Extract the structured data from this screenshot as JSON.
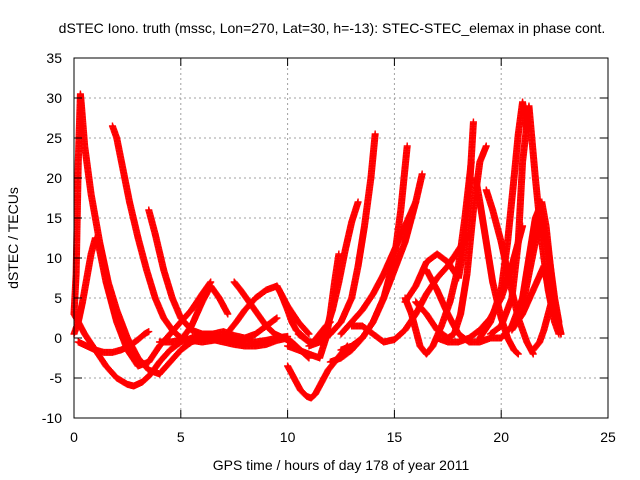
{
  "chart_data": {
    "type": "scatter",
    "title": "dSTEC Iono. truth (mssc, Lon=270, Lat=30, h=-13): STEC-STEC_elemax in phase cont.",
    "xlabel": "GPS time / hours of day 178 of year 2011",
    "ylabel": "dSTEC  / TECUs",
    "xlim": [
      0,
      25
    ],
    "ylim": [
      -10,
      35
    ],
    "xticks": [
      "0",
      "5",
      "10",
      "15",
      "20",
      "25"
    ],
    "yticks": [
      "-10",
      "-5",
      "0",
      "5",
      "10",
      "15",
      "20",
      "25",
      "30",
      "35"
    ],
    "grid": true,
    "legend": "none",
    "marker": "plus",
    "color": "#ff0000",
    "series": [
      {
        "x": [
          0.0,
          0.1,
          0.2,
          0.3,
          0.35,
          0.5,
          0.8,
          1.2,
          1.6,
          2.0,
          2.5,
          3.0,
          3.5,
          4.0,
          4.5,
          5.0,
          5.5,
          6.0,
          6.5,
          7.0
        ],
        "y": [
          3.0,
          8.0,
          22.0,
          30.5,
          29.0,
          24.0,
          18.0,
          12.0,
          7.0,
          3.5,
          0.0,
          -2.5,
          -4.0,
          -4.5,
          -3.0,
          -1.5,
          -0.5,
          0.0,
          0.2,
          0.0
        ]
      },
      {
        "x": [
          0.0,
          0.2,
          0.4,
          0.6,
          0.8,
          1.0,
          1.2,
          1.5,
          2.0,
          2.5,
          3.0,
          3.5,
          4.0,
          4.5,
          5.0,
          5.5,
          6.0,
          6.4
        ],
        "y": [
          0.5,
          2.0,
          4.5,
          7.5,
          10.5,
          12.5,
          11.0,
          7.0,
          2.0,
          -1.5,
          -3.5,
          -3.0,
          -1.0,
          0.5,
          2.0,
          3.5,
          5.5,
          7.0
        ]
      },
      {
        "x": [
          0.0,
          0.5,
          1.0,
          1.5,
          2.0,
          2.5,
          2.8,
          3.2,
          3.6,
          4.0,
          4.5,
          5.0,
          5.5,
          6.0,
          6.5,
          7.0,
          7.5,
          8.0
        ],
        "y": [
          3.0,
          0.5,
          -1.5,
          -3.5,
          -5.0,
          -5.8,
          -6.0,
          -5.5,
          -4.5,
          -3.0,
          -1.5,
          -0.5,
          0.0,
          0.5,
          0.5,
          0.0,
          -0.5,
          -0.8
        ]
      },
      {
        "x": [
          1.8,
          2.0,
          2.3,
          2.6,
          3.0,
          3.4,
          3.8,
          4.2,
          4.6,
          5.0,
          5.5,
          6.0,
          6.5,
          7.0,
          7.5,
          8.0,
          8.5,
          9.0,
          9.5,
          10.0
        ],
        "y": [
          26.5,
          25.0,
          21.0,
          17.0,
          12.5,
          8.5,
          5.0,
          2.5,
          1.0,
          0.0,
          -0.3,
          -0.5,
          -0.3,
          0.0,
          0.0,
          -0.3,
          -0.5,
          -0.3,
          0.0,
          0.2
        ]
      },
      {
        "x": [
          0.2,
          0.6,
          1.0,
          1.4,
          1.8,
          2.2,
          2.6,
          3.0,
          3.3,
          3.5
        ],
        "y": [
          -0.5,
          -1.0,
          -1.5,
          -1.8,
          -1.8,
          -1.5,
          -1.0,
          -0.2,
          0.5,
          0.8
        ]
      },
      {
        "x": [
          3.5,
          3.8,
          4.2,
          4.6,
          5.0,
          5.5,
          6.0,
          6.5,
          7.0,
          7.5,
          8.0,
          8.5,
          9.0,
          9.5
        ],
        "y": [
          16.0,
          13.0,
          8.5,
          5.0,
          2.5,
          1.0,
          0.5,
          0.5,
          0.8,
          0.3,
          0.0,
          0.5,
          1.5,
          2.5
        ]
      },
      {
        "x": [
          4.0,
          4.5,
          5.0,
          5.5,
          6.0,
          6.4,
          6.8,
          7.2
        ],
        "y": [
          -0.5,
          -0.5,
          -0.3,
          1.5,
          4.5,
          6.5,
          5.0,
          3.0
        ]
      },
      {
        "x": [
          7.0,
          7.3,
          7.6,
          8.0,
          8.5,
          9.0,
          9.5,
          10.0,
          10.5,
          11.0
        ],
        "y": [
          0.0,
          1.0,
          2.0,
          3.5,
          5.0,
          6.0,
          6.5,
          4.0,
          2.0,
          0.5
        ]
      },
      {
        "x": [
          7.5,
          7.8,
          8.2,
          8.6,
          9.0,
          9.4,
          9.8,
          10.2,
          10.6,
          11.0
        ],
        "y": [
          7.0,
          6.0,
          4.5,
          3.0,
          1.5,
          0.5,
          0.0,
          -0.5,
          -1.5,
          -2.5
        ]
      },
      {
        "x": [
          6.0,
          6.5,
          7.0,
          7.5,
          8.0,
          8.5,
          9.0,
          9.5,
          10.0
        ],
        "y": [
          0.0,
          -0.2,
          -0.5,
          -0.8,
          -1.0,
          -1.0,
          -0.8,
          -0.3,
          0.0
        ]
      },
      {
        "x": [
          9.5,
          9.7,
          10.0,
          10.2,
          10.4,
          10.6,
          10.8,
          11.0,
          11.2,
          11.5,
          11.8,
          12.0
        ],
        "y": [
          6.5,
          5.5,
          3.5,
          2.0,
          1.0,
          0.5,
          0.0,
          -0.5,
          -0.5,
          0.5,
          1.5,
          2.0
        ]
      },
      {
        "x": [
          10.0,
          10.3,
          10.6,
          10.9,
          11.1,
          11.3,
          11.6,
          11.9,
          12.2,
          12.5,
          12.8
        ],
        "y": [
          -3.5,
          -5.0,
          -6.5,
          -7.3,
          -7.5,
          -7.0,
          -5.5,
          -4.0,
          -3.0,
          -2.0,
          -1.0
        ]
      },
      {
        "x": [
          10.0,
          10.5,
          11.0,
          11.5,
          11.8,
          12.0,
          12.2,
          12.4
        ],
        "y": [
          -1.0,
          -1.5,
          -2.0,
          -2.5,
          0.0,
          3.0,
          7.0,
          10.5
        ]
      },
      {
        "x": [
          10.5,
          11.0,
          11.5,
          11.8,
          12.1,
          12.4,
          12.7,
          13.0,
          13.3
        ],
        "y": [
          0.5,
          -0.5,
          -0.5,
          1.0,
          3.5,
          7.0,
          11.0,
          14.5,
          17.0
        ]
      },
      {
        "x": [
          11.0,
          11.5,
          12.0,
          12.5,
          13.0,
          13.3,
          13.6,
          13.9,
          14.1
        ],
        "y": [
          -1.0,
          -0.5,
          0.5,
          2.0,
          5.0,
          9.0,
          14.0,
          20.0,
          25.5
        ]
      },
      {
        "x": [
          12.0,
          12.5,
          13.0,
          13.5,
          14.0,
          14.5,
          15.0,
          15.3,
          15.6
        ],
        "y": [
          -3.0,
          -2.5,
          -1.5,
          0.0,
          2.0,
          5.0,
          10.0,
          16.0,
          24.0
        ]
      },
      {
        "x": [
          12.5,
          13.0,
          13.5,
          14.0,
          14.5,
          15.0,
          15.5,
          16.0,
          16.3
        ],
        "y": [
          -1.5,
          -1.0,
          0.0,
          2.0,
          5.0,
          8.5,
          12.0,
          17.0,
          20.5
        ]
      },
      {
        "x": [
          12.5,
          13.0,
          13.5,
          14.0,
          14.5,
          15.0,
          15.5,
          16.0
        ],
        "y": [
          0.5,
          2.0,
          3.5,
          5.5,
          8.0,
          11.0,
          14.0,
          17.0
        ]
      },
      {
        "x": [
          13.0,
          13.5,
          14.0,
          14.5,
          15.0,
          15.5,
          16.0,
          16.5,
          17.0,
          17.5,
          18.0,
          18.5
        ],
        "y": [
          1.5,
          1.5,
          0.5,
          -0.5,
          -0.2,
          1.0,
          3.0,
          5.5,
          7.5,
          9.0,
          11.0,
          13.0
        ]
      },
      {
        "x": [
          15.5,
          15.8,
          16.0,
          16.2,
          16.5,
          16.8,
          17.2,
          17.6,
          18.0,
          18.3,
          18.6
        ],
        "y": [
          5.0,
          3.0,
          1.0,
          -1.0,
          -2.0,
          -1.0,
          1.5,
          4.5,
          9.0,
          15.0,
          22.0
        ]
      },
      {
        "x": [
          15.5,
          16.0,
          16.5,
          17.0,
          17.5,
          18.0,
          18.3,
          18.5,
          18.7
        ],
        "y": [
          4.5,
          6.5,
          9.5,
          10.5,
          9.5,
          7.5,
          12.0,
          18.0,
          27.0
        ]
      },
      {
        "x": [
          16.5,
          17.0,
          17.5,
          18.0,
          18.5,
          19.0,
          19.5,
          20.0
        ],
        "y": [
          8.5,
          6.0,
          3.0,
          0.5,
          -0.5,
          -0.5,
          0.0,
          0.0
        ]
      },
      {
        "x": [
          16.0,
          16.5,
          17.0,
          17.5,
          17.8,
          18.1,
          18.4,
          18.7,
          19.0,
          19.3
        ],
        "y": [
          4.5,
          3.0,
          1.0,
          0.0,
          0.5,
          3.0,
          8.0,
          16.0,
          22.0,
          24.0
        ]
      },
      {
        "x": [
          17.0,
          17.5,
          18.0,
          18.5,
          19.0,
          19.5,
          20.0,
          20.5,
          21.0
        ],
        "y": [
          0.0,
          -0.5,
          -0.5,
          0.0,
          1.0,
          2.5,
          5.0,
          9.0,
          14.0
        ]
      },
      {
        "x": [
          18.8,
          19.0,
          19.3,
          19.6,
          20.0,
          20.3,
          20.6,
          20.8
        ],
        "y": [
          20.0,
          17.0,
          12.0,
          7.0,
          2.5,
          0.0,
          -1.5,
          -2.0
        ]
      },
      {
        "x": [
          19.3,
          19.6,
          20.0,
          20.4,
          20.8,
          21.2,
          21.5
        ],
        "y": [
          18.5,
          16.0,
          12.0,
          7.0,
          2.5,
          -0.5,
          -2.0
        ]
      },
      {
        "x": [
          19.0,
          19.5,
          20.0,
          20.3,
          20.6,
          20.8,
          21.0,
          21.2
        ],
        "y": [
          0.0,
          2.0,
          6.0,
          12.0,
          20.0,
          25.5,
          29.5,
          26.0
        ]
      },
      {
        "x": [
          19.5,
          20.0,
          20.5,
          20.8,
          21.0,
          21.3,
          21.6,
          21.9,
          22.2,
          22.5,
          22.7
        ],
        "y": [
          0.5,
          1.5,
          5.0,
          12.0,
          22.0,
          29.0,
          20.0,
          12.0,
          6.0,
          2.0,
          0.5
        ]
      },
      {
        "x": [
          20.0,
          20.5,
          21.0,
          21.3,
          21.6,
          21.9,
          22.1,
          22.3,
          22.5,
          22.7
        ],
        "y": [
          0.0,
          1.5,
          5.0,
          10.0,
          15.0,
          17.0,
          14.0,
          9.0,
          4.0,
          1.0
        ]
      },
      {
        "x": [
          21.0,
          21.3,
          21.6,
          21.9,
          22.2,
          22.5,
          22.7
        ],
        "y": [
          4.0,
          8.0,
          12.0,
          15.0,
          11.0,
          5.0,
          2.0
        ]
      },
      {
        "x": [
          21.5,
          21.8,
          22.0,
          22.2,
          22.4,
          22.6,
          22.8
        ],
        "y": [
          -1.5,
          -0.5,
          1.0,
          3.0,
          5.0,
          3.0,
          0.5
        ]
      },
      {
        "x": [
          20.5,
          21.0,
          21.5,
          22.0,
          22.3,
          22.6,
          22.8
        ],
        "y": [
          1.0,
          3.0,
          6.0,
          9.0,
          5.0,
          2.0,
          0.5
        ]
      }
    ]
  }
}
